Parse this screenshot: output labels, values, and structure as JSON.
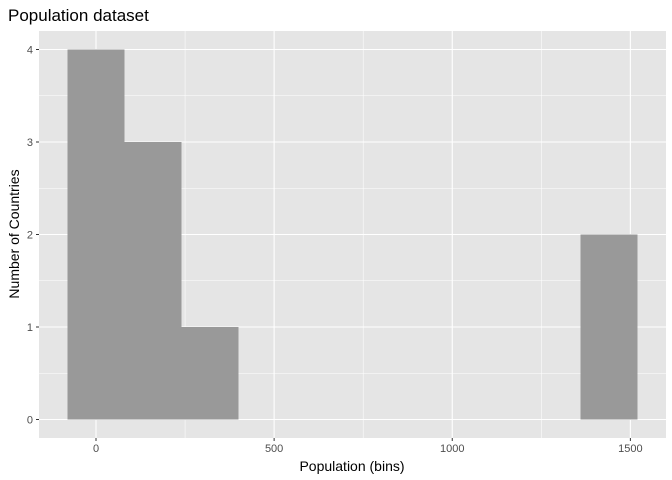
{
  "chart_data": {
    "type": "bar",
    "title": "Population dataset",
    "xlabel": "Population (bins)",
    "ylabel": "Number of Countries",
    "bin_width": 160,
    "bins": [
      {
        "x_start": -80,
        "x_end": 80,
        "count": 4
      },
      {
        "x_start": 80,
        "x_end": 240,
        "count": 3
      },
      {
        "x_start": 240,
        "x_end": 400,
        "count": 1
      },
      {
        "x_start": 400,
        "x_end": 560,
        "count": 0
      },
      {
        "x_start": 560,
        "x_end": 720,
        "count": 0
      },
      {
        "x_start": 720,
        "x_end": 880,
        "count": 0
      },
      {
        "x_start": 880,
        "x_end": 1040,
        "count": 0
      },
      {
        "x_start": 1040,
        "x_end": 1200,
        "count": 0
      },
      {
        "x_start": 1200,
        "x_end": 1360,
        "count": 0
      },
      {
        "x_start": 1360,
        "x_end": 1520,
        "count": 2
      }
    ],
    "x_ticks": [
      0,
      500,
      1000,
      1500
    ],
    "y_ticks": [
      0,
      1,
      2,
      3,
      4
    ],
    "xlim": [
      -160,
      1600
    ],
    "ylim": [
      -0.2,
      4.2
    ],
    "grid": true,
    "bar_color": "#999999",
    "panel_background": "#e5e5e5",
    "grid_color": "#ffffff"
  }
}
